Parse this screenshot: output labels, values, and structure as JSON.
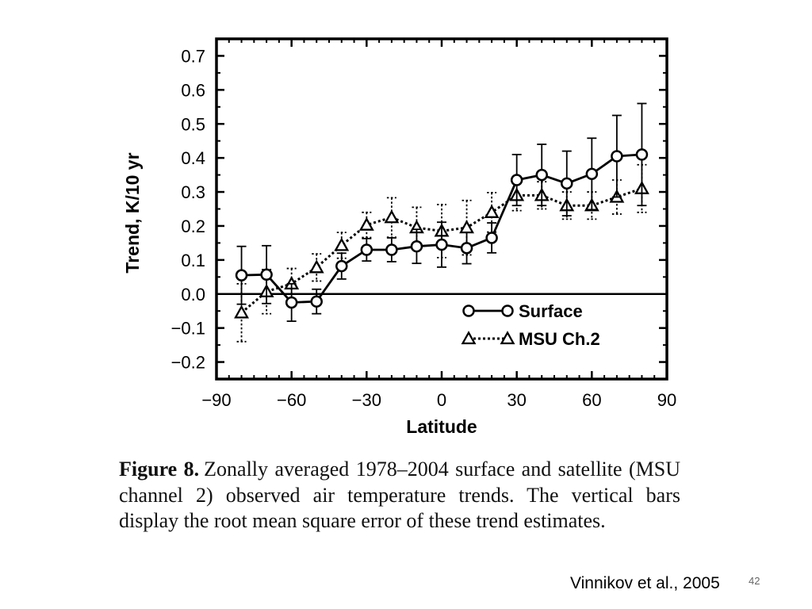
{
  "chart_data": {
    "type": "line",
    "ylabel": "Trend, K/10 yr",
    "xlabel": "Latitude",
    "xlim": [
      -90,
      90
    ],
    "ylim": [
      -0.25,
      0.75
    ],
    "x_ticks": [
      -90,
      -60,
      -30,
      0,
      30,
      60,
      90
    ],
    "x_tick_labels": [
      "−90",
      "−60",
      "−30",
      "0",
      "30",
      "60",
      "90"
    ],
    "y_ticks": [
      -0.2,
      -0.1,
      0.0,
      0.1,
      0.2,
      0.3,
      0.4,
      0.5,
      0.6,
      0.7
    ],
    "y_tick_labels": [
      "−0.2",
      "−0.1",
      "0.0",
      "0.1",
      "0.2",
      "0.3",
      "0.4",
      "0.5",
      "0.6",
      "0.7"
    ],
    "x": [
      -80,
      -70,
      -60,
      -50,
      -40,
      -30,
      -20,
      -10,
      0,
      10,
      20,
      30,
      40,
      50,
      60,
      70,
      80
    ],
    "zero_line": 0.0,
    "legend_position": "lower-right",
    "series": [
      {
        "name": "Surface",
        "marker": "circle",
        "line_style": "solid",
        "values": [
          0.055,
          0.057,
          -0.025,
          -0.022,
          0.082,
          0.13,
          0.13,
          0.14,
          0.145,
          0.135,
          0.165,
          0.335,
          0.35,
          0.325,
          0.353,
          0.405,
          0.41
        ],
        "errors": [
          0.085,
          0.085,
          0.055,
          0.036,
          0.038,
          0.033,
          0.035,
          0.05,
          0.066,
          0.046,
          0.044,
          0.075,
          0.09,
          0.095,
          0.105,
          0.12,
          0.15
        ]
      },
      {
        "name": "MSU Ch.2",
        "marker": "triangle",
        "line_style": "dotted",
        "values": [
          -0.055,
          0.007,
          0.03,
          0.078,
          0.143,
          0.203,
          0.225,
          0.195,
          0.185,
          0.195,
          0.24,
          0.29,
          0.29,
          0.26,
          0.26,
          0.285,
          0.31
        ],
        "errors": [
          0.085,
          0.065,
          0.045,
          0.04,
          0.038,
          0.037,
          0.058,
          0.06,
          0.078,
          0.08,
          0.058,
          0.045,
          0.04,
          0.04,
          0.04,
          0.05,
          0.07
        ]
      }
    ]
  },
  "caption": {
    "label": "Figure 8.",
    "text": "Zonally averaged 1978–2004 surface and satellite (MSU channel 2) observed air temperature trends. The vertical bars display the root mean square error of these trend estimates."
  },
  "citation": "Vinnikov et al., 2005",
  "slide_number": "42"
}
